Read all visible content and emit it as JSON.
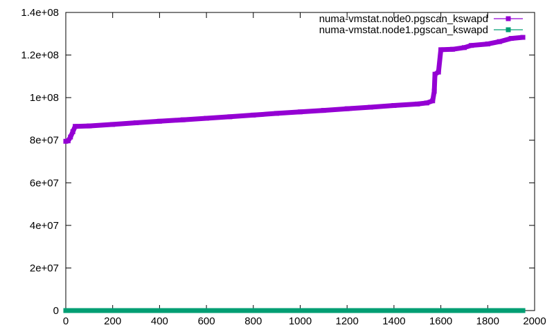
{
  "chart_data": {
    "type": "line",
    "title": "",
    "xlabel": "",
    "ylabel": "",
    "xlim": [
      0,
      2000
    ],
    "ylim": [
      0,
      140000000
    ],
    "x_ticks": [
      "0",
      "200",
      "400",
      "600",
      "800",
      "1000",
      "1200",
      "1400",
      "1600",
      "1800",
      "2000"
    ],
    "y_ticks": [
      "0",
      "2e+07",
      "4e+07",
      "6e+07",
      "8e+07",
      "1e+08",
      "1.2e+08",
      "1.4e+08"
    ],
    "grid": false,
    "legend_position": "top-right",
    "series": [
      {
        "name": "numa-vmstat.node0.pgscan_kswapd",
        "color": "#9400d3",
        "marker": "square",
        "points": [
          [
            0,
            79500000
          ],
          [
            10,
            79700000
          ],
          [
            20,
            81500000
          ],
          [
            30,
            84000000
          ],
          [
            40,
            86500000
          ],
          [
            100,
            86700000
          ],
          [
            200,
            87400000
          ],
          [
            300,
            88200000
          ],
          [
            400,
            88900000
          ],
          [
            500,
            89600000
          ],
          [
            600,
            90300000
          ],
          [
            700,
            91000000
          ],
          [
            800,
            91800000
          ],
          [
            900,
            92600000
          ],
          [
            1000,
            93300000
          ],
          [
            1100,
            94000000
          ],
          [
            1200,
            94800000
          ],
          [
            1300,
            95500000
          ],
          [
            1400,
            96300000
          ],
          [
            1500,
            97000000
          ],
          [
            1540,
            97500000
          ],
          [
            1565,
            98500000
          ],
          [
            1572,
            103000000
          ],
          [
            1575,
            111000000
          ],
          [
            1590,
            112000000
          ],
          [
            1600,
            122500000
          ],
          [
            1650,
            122700000
          ],
          [
            1700,
            123500000
          ],
          [
            1730,
            124500000
          ],
          [
            1800,
            125200000
          ],
          [
            1850,
            126300000
          ],
          [
            1900,
            127800000
          ],
          [
            1950,
            128300000
          ]
        ]
      },
      {
        "name": "numa-vmstat.node1.pgscan_kswapd",
        "color": "#009e73",
        "marker": "square",
        "points": [
          [
            0,
            0
          ],
          [
            500,
            0
          ],
          [
            1000,
            0
          ],
          [
            1500,
            0
          ],
          [
            1950,
            0
          ]
        ]
      }
    ]
  }
}
